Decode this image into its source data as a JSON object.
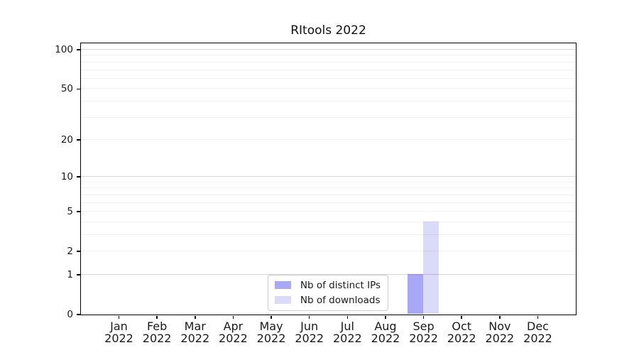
{
  "title": "RItools 2022",
  "chart_data": {
    "type": "bar",
    "title": "RItools 2022",
    "categories": [
      {
        "month": "Jan",
        "year": "2022"
      },
      {
        "month": "Feb",
        "year": "2022"
      },
      {
        "month": "Mar",
        "year": "2022"
      },
      {
        "month": "Apr",
        "year": "2022"
      },
      {
        "month": "May",
        "year": "2022"
      },
      {
        "month": "Jun",
        "year": "2022"
      },
      {
        "month": "Jul",
        "year": "2022"
      },
      {
        "month": "Aug",
        "year": "2022"
      },
      {
        "month": "Sep",
        "year": "2022"
      },
      {
        "month": "Oct",
        "year": "2022"
      },
      {
        "month": "Nov",
        "year": "2022"
      },
      {
        "month": "Dec",
        "year": "2022"
      }
    ],
    "series": [
      {
        "name": "Nb of distinct IPs",
        "color": "#a8a8f6",
        "values": [
          0,
          0,
          0,
          0,
          0,
          0,
          0,
          0,
          1,
          0,
          0,
          0
        ]
      },
      {
        "name": "Nb of downloads",
        "color": "#dbdbf9",
        "values": [
          0,
          0,
          0,
          0,
          0,
          0,
          0,
          0,
          4,
          0,
          0,
          0
        ]
      }
    ],
    "y_axis": {
      "scale": "log10(1+x)",
      "ticks": [
        0,
        1,
        2,
        5,
        10,
        20,
        50,
        100
      ],
      "major_gridlines": [
        1,
        10,
        100
      ],
      "minor_gridlines": [
        2,
        3,
        4,
        5,
        6,
        7,
        8,
        9,
        20,
        30,
        40,
        50,
        60,
        70,
        80,
        90
      ],
      "ylim": [
        0,
        112
      ]
    },
    "legend_position": "lower center",
    "grid": "horizontal"
  },
  "colors": {
    "grid_minor": "rgba(0,0,0,0.055)",
    "grid_major": "rgba(0,0,0,0.16)",
    "spine": "#000000",
    "text": "#1a1a1a",
    "legend_border": "#cccccc"
  }
}
